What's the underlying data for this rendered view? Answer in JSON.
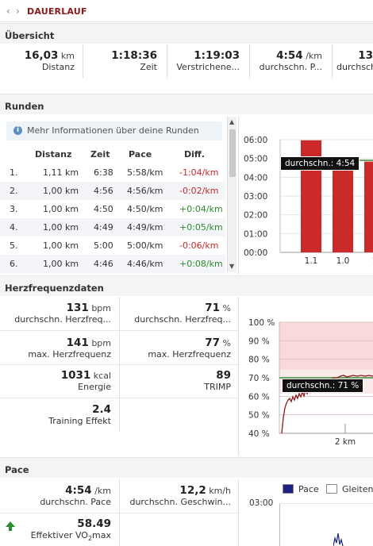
{
  "topbar": {
    "title": "DAUERLAUF"
  },
  "overview": {
    "title": "Übersicht",
    "stats": [
      {
        "value": "16,03",
        "unit": "km",
        "label": "Distanz"
      },
      {
        "value": "1:18:36",
        "unit": "",
        "label": "Zeit"
      },
      {
        "value": "1:19:03",
        "unit": "",
        "label": "Verstrichene..."
      },
      {
        "value": "4:54",
        "unit": "/km",
        "label": "durchschn. P..."
      },
      {
        "value": "13",
        "unit": "",
        "label": "durchsch"
      }
    ]
  },
  "laps": {
    "title": "Runden",
    "info": "Mehr Informationen über deine Runden",
    "headers": [
      "Distanz",
      "Zeit",
      "Pace",
      "Diff."
    ],
    "rows": [
      {
        "n": "1.",
        "dist": "1,11 km",
        "time": "6:38",
        "pace": "5:58/km",
        "diff": "-1:04/km",
        "sign": "neg"
      },
      {
        "n": "2.",
        "dist": "1,00 km",
        "time": "4:56",
        "pace": "4:56/km",
        "diff": "-0:02/km",
        "sign": "neg"
      },
      {
        "n": "3.",
        "dist": "1,00 km",
        "time": "4:50",
        "pace": "4:50/km",
        "diff": "+0:04/km",
        "sign": "pos"
      },
      {
        "n": "4.",
        "dist": "1,00 km",
        "time": "4:49",
        "pace": "4:49/km",
        "diff": "+0:05/km",
        "sign": "pos"
      },
      {
        "n": "5.",
        "dist": "1,00 km",
        "time": "5:00",
        "pace": "5:00/km",
        "diff": "-0:06/km",
        "sign": "neg"
      },
      {
        "n": "6.",
        "dist": "1,00 km",
        "time": "4:46",
        "pace": "4:46/km",
        "diff": "+0:08/km",
        "sign": "pos"
      }
    ],
    "chart": {
      "y_ticks": [
        "06:00",
        "05:00",
        "04:00",
        "03:00",
        "02:00",
        "01:00",
        "00:00"
      ],
      "x_ticks": [
        "1.1",
        "1.0",
        "1"
      ],
      "tooltip": "durchschn.: 4:54"
    }
  },
  "heart": {
    "title": "Herzfrequenzdaten",
    "stats": [
      {
        "value": "131",
        "unit": "bpm",
        "label": "durchschn. Herzfreq..."
      },
      {
        "value": "71",
        "unit": "%",
        "label": "durchschn. Herzfreq..."
      },
      {
        "value": "141",
        "unit": "bpm",
        "label": "max. Herzfrequenz"
      },
      {
        "value": "77",
        "unit": "%",
        "label": "max. Herzfrequenz"
      },
      {
        "value": "1031",
        "unit": "kcal",
        "label": "Energie"
      },
      {
        "value": "89",
        "unit": "",
        "label": "TRIMP"
      },
      {
        "value": "2.4",
        "unit": "",
        "label": "Training Effekt"
      }
    ],
    "chart": {
      "y_ticks": [
        "100 %",
        "90 %",
        "80 %",
        "70 %",
        "60 %",
        "50 %",
        "40 %"
      ],
      "x_tick": "2 km",
      "tooltip": "durchschn.: 71 %"
    }
  },
  "pace": {
    "title": "Pace",
    "stats": [
      {
        "value": "4:54",
        "unit": "/km",
        "label": "durchschn. Pace"
      },
      {
        "value": "12,2",
        "unit": "km/h",
        "label": "durchschn. Geschwin..."
      },
      {
        "value": "58.49",
        "unit": "",
        "label": "Effektiver VO",
        "label_sub": "2",
        "label_tail": "max"
      }
    ],
    "chart": {
      "legend": [
        "Pace",
        "Gleiten"
      ],
      "y_tick": "03:00"
    }
  },
  "colors": {
    "bar": "#cc2a2a",
    "accent": "#8b1a1a",
    "hr_line": "#8b1a1a",
    "avg_line": "#3a8a3a",
    "pace_legend": "#1a237e"
  }
}
